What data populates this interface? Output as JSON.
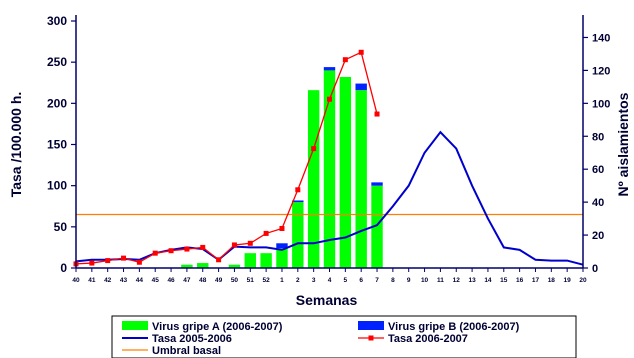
{
  "chart_data": {
    "type": "bar",
    "xlabel": "Semanas",
    "ylabel": "Tasa /100.000 h.",
    "y2label": "Nº aislamientos",
    "ylim": [
      0,
      300
    ],
    "y2lim": [
      0,
      150
    ],
    "yticks": [
      0,
      50,
      100,
      150,
      200,
      250,
      300
    ],
    "y2ticks": [
      0,
      20,
      40,
      60,
      80,
      100,
      120,
      140
    ],
    "grid": false,
    "legend_position": "bottom",
    "categories": [
      "40",
      "41",
      "42",
      "43",
      "44",
      "45",
      "46",
      "47",
      "48",
      "49",
      "50",
      "51",
      "52",
      "1",
      "2",
      "3",
      "4",
      "5",
      "6",
      "7",
      "8",
      "9",
      "10",
      "11",
      "12",
      "13",
      "14",
      "15",
      "16",
      "17",
      "18",
      "19",
      "20"
    ],
    "colors": {
      "virus_a": "#00ff00",
      "virus_b": "#0022ff",
      "tasa_0506": "#0000cc",
      "tasa_0607": "#ff0000",
      "umbral": "#ff8000",
      "axis": "#000066"
    },
    "series": [
      {
        "name": "Virus gripe A (2006-2007)",
        "type": "bar",
        "axis": "right",
        "values": [
          0,
          0,
          0,
          0,
          0,
          0,
          0,
          2,
          3,
          0,
          2,
          9,
          9,
          12,
          40,
          108,
          120,
          116,
          108,
          50,
          null,
          null,
          null,
          null,
          null,
          null,
          null,
          null,
          null,
          null,
          null,
          null,
          null
        ]
      },
      {
        "name": "Virus gripe B (2006-2007)",
        "type": "bar",
        "axis": "right",
        "stacked_on": "Virus gripe A (2006-2007)",
        "values": [
          0,
          0,
          0,
          0,
          0,
          0,
          0,
          0,
          0,
          0,
          0,
          0,
          0,
          3,
          1,
          0,
          2,
          0,
          4,
          2,
          null,
          null,
          null,
          null,
          null,
          null,
          null,
          null,
          null,
          null,
          null,
          null,
          null
        ]
      },
      {
        "name": "Tasa 2005-2006",
        "type": "line",
        "axis": "left",
        "values": [
          8,
          10,
          10,
          11,
          10,
          18,
          22,
          25,
          23,
          10,
          26,
          25,
          25,
          22,
          30,
          30,
          34,
          37,
          45,
          52,
          75,
          100,
          140,
          165,
          145,
          100,
          60,
          25,
          22,
          10,
          9,
          9,
          4
        ]
      },
      {
        "name": "Tasa 2006-2007",
        "type": "line",
        "axis": "left",
        "values": [
          5,
          6,
          9,
          12,
          7,
          18,
          21,
          23,
          25,
          10,
          28,
          30,
          42,
          48,
          95,
          145,
          205,
          253,
          262,
          187,
          null,
          null,
          null,
          null,
          null,
          null,
          null,
          null,
          null,
          null,
          null,
          null,
          null
        ]
      },
      {
        "name": "Umbral basal",
        "type": "line",
        "axis": "left",
        "constant": 65
      }
    ]
  }
}
